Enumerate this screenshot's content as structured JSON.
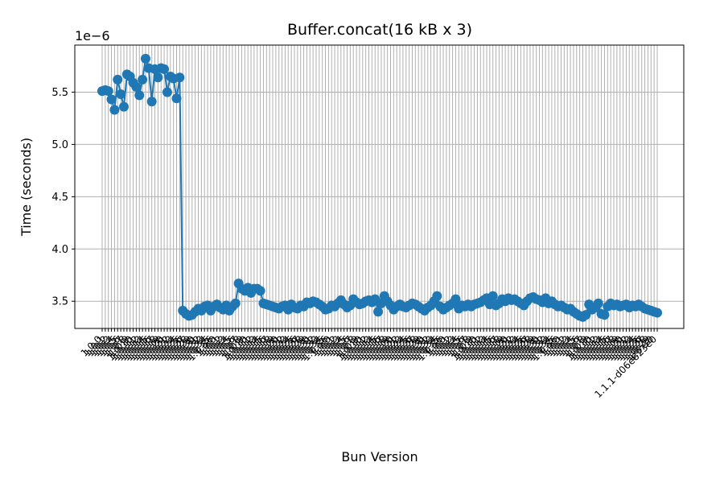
{
  "chart_data": {
    "type": "line",
    "title": "Buffer.concat(16 kB x 3)",
    "xlabel": "Bun Version",
    "ylabel": "Time (seconds)",
    "y_offset_label": "1e−6",
    "ylim": [
      3.24,
      5.95
    ],
    "y_ticks": [
      "3.5",
      "4.0",
      "4.5",
      "5.0",
      "5.5"
    ],
    "y_tick_values": [
      3.5,
      4.0,
      4.5,
      5.0,
      5.5
    ],
    "grid": true,
    "marker": "circle",
    "color": "#1f77b4",
    "x_tick_labels_legible": false,
    "x_tick_label_sample": [
      "1.0.0",
      "1.0.1",
      "1.0.2",
      "1.0.3",
      "1.0.4",
      "1.0.5",
      "1.0.6",
      "1.0.7",
      "1.0.8",
      "1.0.9",
      "1.0.10",
      "1.0.11",
      "1.0.12",
      "1.0.13",
      "1.0.14",
      "1.0.15",
      "1.0.16",
      "1.0.17",
      "1.0.18",
      "1.0.19",
      "1.0.20",
      "1.0.21",
      "1.0.22",
      "1.0.23",
      "1.0.24",
      "1.0.25",
      "1.0.26",
      "1.0.27",
      "1.0.28",
      "1.0.29",
      "1.0.30",
      "1.0.31",
      "1.0.32",
      "1.0.33",
      "1.0.34",
      "1.0.35",
      "1.0.36"
    ],
    "x_tick_label_tail": "1.1.1-d06e823e0",
    "series": [
      {
        "values": [
          5.51,
          5.52,
          5.51,
          5.43,
          5.33,
          5.62,
          5.48,
          5.36,
          5.67,
          5.65,
          5.59,
          5.55,
          5.47,
          5.62,
          5.82,
          5.73,
          5.41,
          5.72,
          5.64,
          5.73,
          5.72,
          5.5,
          5.65,
          5.63,
          5.44,
          5.64,
          3.41,
          3.38,
          3.36,
          3.37,
          3.4,
          3.43,
          3.41,
          3.45,
          3.46,
          3.41,
          3.45,
          3.47,
          3.44,
          3.42,
          3.46,
          3.41,
          3.45,
          3.48,
          3.67,
          3.62,
          3.6,
          3.63,
          3.58,
          3.62,
          3.62,
          3.6,
          3.48,
          3.47,
          3.46,
          3.45,
          3.44,
          3.43,
          3.45,
          3.46,
          3.42,
          3.47,
          3.44,
          3.43,
          3.46,
          3.45,
          3.49,
          3.48,
          3.5,
          3.49,
          3.47,
          3.45,
          3.42,
          3.43,
          3.46,
          3.45,
          3.48,
          3.51,
          3.47,
          3.44,
          3.46,
          3.52,
          3.49,
          3.47,
          3.48,
          3.5,
          3.51,
          3.49,
          3.52,
          3.4,
          3.48,
          3.55,
          3.5,
          3.46,
          3.42,
          3.45,
          3.47,
          3.45,
          3.44,
          3.46,
          3.48,
          3.47,
          3.45,
          3.43,
          3.41,
          3.44,
          3.46,
          3.5,
          3.55,
          3.45,
          3.42,
          3.44,
          3.46,
          3.48,
          3.52,
          3.43,
          3.46,
          3.45,
          3.47,
          3.45,
          3.47,
          3.48,
          3.49,
          3.51,
          3.53,
          3.47,
          3.55,
          3.46,
          3.48,
          3.52,
          3.5,
          3.53,
          3.51,
          3.52,
          3.5,
          3.48,
          3.46,
          3.5,
          3.53,
          3.54,
          3.52,
          3.51,
          3.49,
          3.53,
          3.48,
          3.5,
          3.47,
          3.45,
          3.46,
          3.44,
          3.42,
          3.43,
          3.4,
          3.38,
          3.36,
          3.35,
          3.37,
          3.47,
          3.42,
          3.44,
          3.48,
          3.38,
          3.37,
          3.45,
          3.48,
          3.46,
          3.47,
          3.45,
          3.46,
          3.47,
          3.44,
          3.46,
          3.45,
          3.47,
          3.45,
          3.43,
          3.42,
          3.41,
          3.4,
          3.39
        ]
      }
    ]
  }
}
